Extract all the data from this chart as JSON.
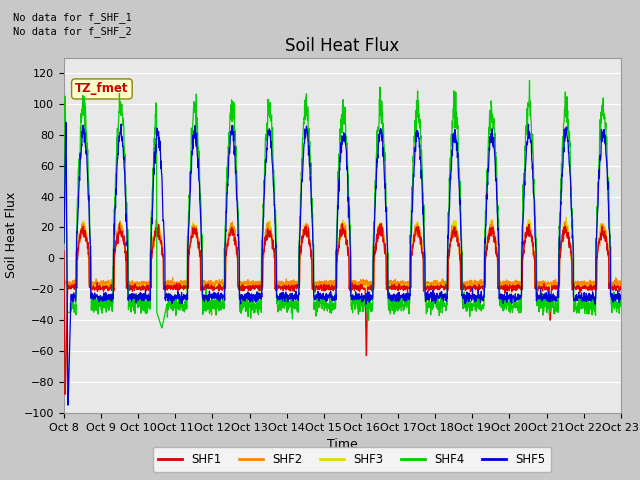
{
  "title": "Soil Heat Flux",
  "ylabel": "Soil Heat Flux",
  "xlabel": "Time",
  "ylim": [
    -100,
    130
  ],
  "yticks": [
    -100,
    -80,
    -60,
    -40,
    -20,
    0,
    20,
    40,
    60,
    80,
    100,
    120
  ],
  "xtick_labels": [
    "Oct 8",
    "Oct 9",
    "Oct 10",
    "Oct 11",
    "Oct 12",
    "Oct 13",
    "Oct 14",
    "Oct 15",
    "Oct 16",
    "Oct 17",
    "Oct 18",
    "Oct 19",
    "Oct 20",
    "Oct 21",
    "Oct 22",
    "Oct 23"
  ],
  "no_data_text": [
    "No data for f_SHF_1",
    "No data for f_SHF_2"
  ],
  "legend_box_text": "TZ_fmet",
  "legend_box_color": "#ffffcc",
  "legend_box_border": "#888800",
  "colors": {
    "SHF1": "#dd0000",
    "SHF2": "#ff8800",
    "SHF3": "#dddd00",
    "SHF4": "#00cc00",
    "SHF5": "#0000dd"
  },
  "background_color": "#e8e8e8",
  "grid_color": "#ffffff",
  "title_fontsize": 12,
  "axis_fontsize": 9,
  "tick_fontsize": 8
}
